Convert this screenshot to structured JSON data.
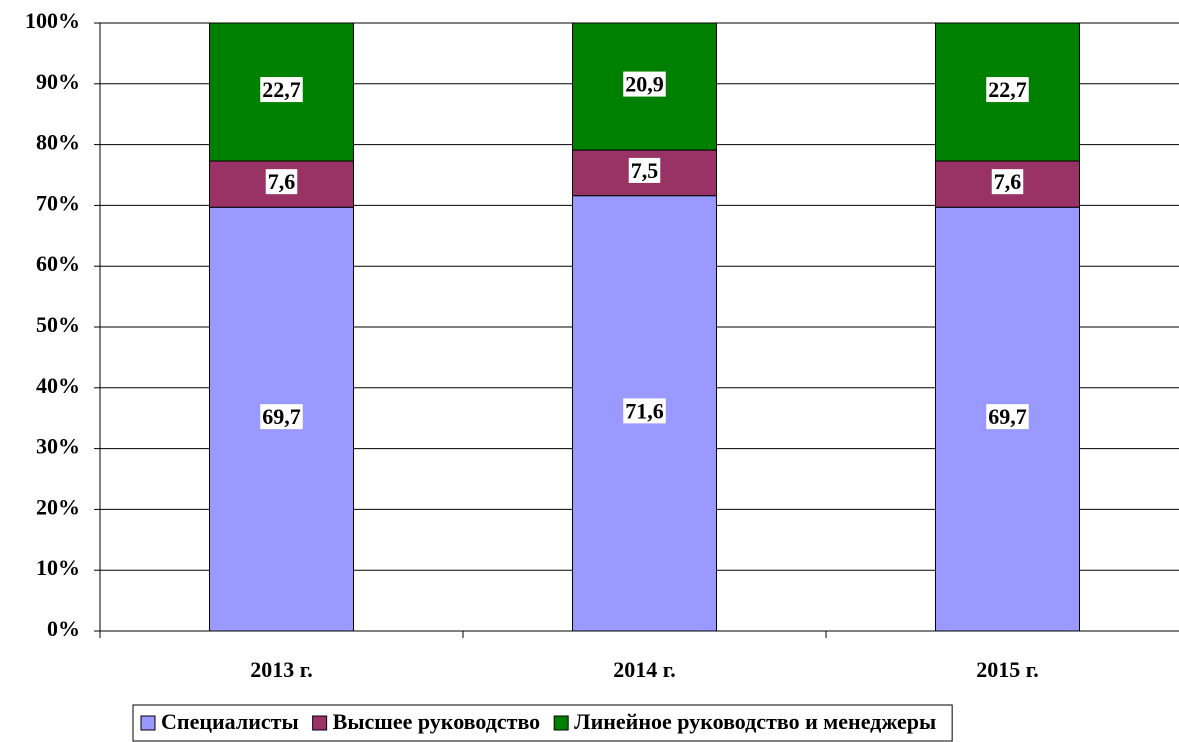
{
  "chart_data": {
    "type": "stacked_bar",
    "categories": [
      "2013 г.",
      "2014 г.",
      "2015 г."
    ],
    "series": [
      {
        "name": "Специалисты",
        "color": "#9999ff",
        "values": [
          69.7,
          71.6,
          69.7
        ],
        "value_labels": [
          "69,7",
          "71,6",
          "69,7"
        ]
      },
      {
        "name": "Высшее руководство",
        "color": "#993366",
        "values": [
          7.6,
          7.5,
          7.6
        ],
        "value_labels": [
          "7,6",
          "7,5",
          "7,6"
        ]
      },
      {
        "name": "Линейное руководство и менеджеры",
        "color": "#008000",
        "values": [
          22.7,
          20.9,
          22.7
        ],
        "value_labels": [
          "22,7",
          "20,9",
          "22,7"
        ]
      }
    ],
    "ylim": [
      0,
      100
    ],
    "yticks": [
      {
        "value": 0,
        "label": "0%"
      },
      {
        "value": 10,
        "label": "10%"
      },
      {
        "value": 20,
        "label": "20%"
      },
      {
        "value": 30,
        "label": "30%"
      },
      {
        "value": 40,
        "label": "40%"
      },
      {
        "value": 50,
        "label": "50%"
      },
      {
        "value": 60,
        "label": "60%"
      },
      {
        "value": 70,
        "label": "70%"
      },
      {
        "value": 80,
        "label": "80%"
      },
      {
        "value": 90,
        "label": "90%"
      },
      {
        "value": 100,
        "label": "100%"
      }
    ],
    "grid": true,
    "legend": "bottom"
  }
}
